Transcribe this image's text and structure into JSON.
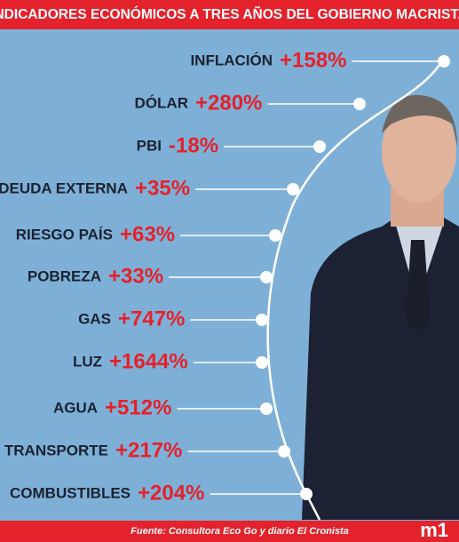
{
  "header": {
    "title": "INDICADORES ECONÓMICOS A TRES AÑOS DEL GOBIERNO MACRISTA"
  },
  "items": [
    {
      "label": "INFLACIÓN",
      "value": "+158%"
    },
    {
      "label": "DÓLAR",
      "value": "+280%"
    },
    {
      "label": "PBI",
      "value": "-18%"
    },
    {
      "label": "DEUDA EXTERNA",
      "value": "+35%"
    },
    {
      "label": "RIESGO PAÍS",
      "value": "+63%"
    },
    {
      "label": "POBREZA",
      "value": "+33%"
    },
    {
      "label": "GAS",
      "value": "+747%"
    },
    {
      "label": "LUZ",
      "value": "+1644%"
    },
    {
      "label": "AGUA",
      "value": "+512%"
    },
    {
      "label": "TRANSPORTE",
      "value": "+217%"
    },
    {
      "label": "COMBUSTIBLES",
      "value": "+204%"
    }
  ],
  "footer": {
    "source": "Fuente: Consultora Eco Go y diario El Cronista",
    "logo": "m1"
  }
}
